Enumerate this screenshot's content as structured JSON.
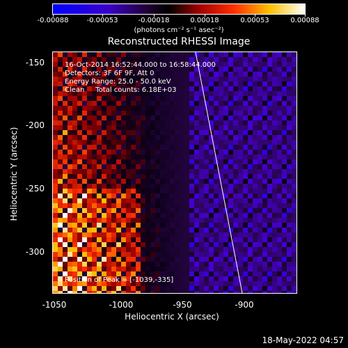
{
  "colorbar": {
    "ticks": [
      "-0.00088",
      "-0.00053",
      "-0.00018",
      "0.00018",
      "0.00053",
      "0.00088"
    ],
    "units": "(photons cm⁻² s⁻¹ asec⁻²)",
    "scale": "blue-black-red-yellow-white"
  },
  "title": "Reconstructed RHESSI Image",
  "info": {
    "time_range": "16-Oct-2014 16:52:44.000 to 16:58:44.000",
    "detectors": "Detectors: 3F 6F 9F, Att 0",
    "energy": "Energy Range: 25.0 - 50.0 keV",
    "clean": "Clean     Total counts: 6.18E+03"
  },
  "peak": "Position of Peak = [-1039,-335]",
  "axes": {
    "xlabel": "Heliocentric X (arcsec)",
    "ylabel": "Heliocentric Y (arcsec)",
    "xticks": [
      "-1050",
      "-1000",
      "-950",
      "-900"
    ],
    "yticks": [
      "-150",
      "-200",
      "-250",
      "-300"
    ],
    "xlim": [
      -1050,
      -865
    ],
    "ylim": [
      -333,
      -142
    ]
  },
  "timestamp": "18-May-2022 04:57",
  "colors": {
    "background": "#000000",
    "foreground": "#ffffff",
    "limb_line": "#ffffff"
  }
}
